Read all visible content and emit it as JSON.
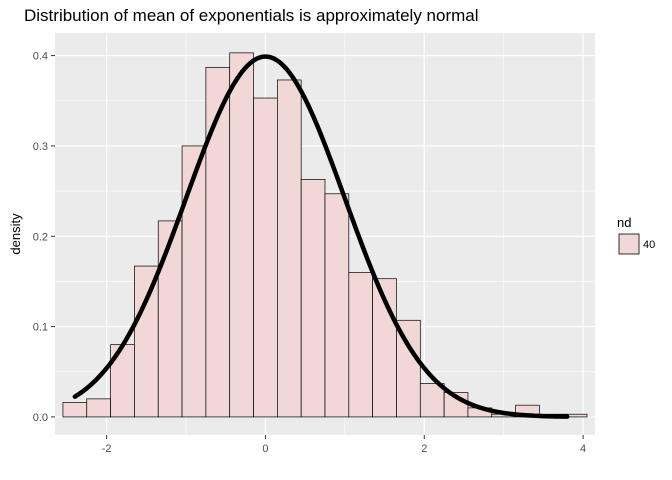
{
  "chart_data": {
    "type": "histogram",
    "title": "Distribution of mean of exponentials is approximately normal",
    "xlabel": "",
    "ylabel": "density",
    "xlim": [
      -2.65,
      4.15
    ],
    "ylim": [
      -0.02,
      0.425
    ],
    "x_ticks": [
      -2,
      0,
      2,
      4
    ],
    "x_tick_labels": [
      "-2",
      "0",
      "2",
      "4"
    ],
    "y_ticks": [
      0.0,
      0.1,
      0.2,
      0.3,
      0.4
    ],
    "y_tick_labels": [
      "0.0",
      "0.1",
      "0.2",
      "0.3",
      "0.4"
    ],
    "grid": true,
    "bin_width": 0.3,
    "bins": [
      {
        "x0": -2.55,
        "x1": -2.25,
        "density": 0.016
      },
      {
        "x0": -2.25,
        "x1": -1.95,
        "density": 0.02
      },
      {
        "x0": -1.95,
        "x1": -1.65,
        "density": 0.08
      },
      {
        "x0": -1.65,
        "x1": -1.35,
        "density": 0.167
      },
      {
        "x0": -1.35,
        "x1": -1.05,
        "density": 0.217
      },
      {
        "x0": -1.05,
        "x1": -0.75,
        "density": 0.3
      },
      {
        "x0": -0.75,
        "x1": -0.45,
        "density": 0.387
      },
      {
        "x0": -0.45,
        "x1": -0.15,
        "density": 0.403
      },
      {
        "x0": -0.15,
        "x1": 0.15,
        "density": 0.353
      },
      {
        "x0": 0.15,
        "x1": 0.45,
        "density": 0.373
      },
      {
        "x0": 0.45,
        "x1": 0.75,
        "density": 0.263
      },
      {
        "x0": 0.75,
        "x1": 1.05,
        "density": 0.247
      },
      {
        "x0": 1.05,
        "x1": 1.35,
        "density": 0.16
      },
      {
        "x0": 1.35,
        "x1": 1.65,
        "density": 0.153
      },
      {
        "x0": 1.65,
        "x1": 1.95,
        "density": 0.107
      },
      {
        "x0": 1.95,
        "x1": 2.25,
        "density": 0.037
      },
      {
        "x0": 2.25,
        "x1": 2.55,
        "density": 0.027
      },
      {
        "x0": 2.55,
        "x1": 2.85,
        "density": 0.01
      },
      {
        "x0": 2.85,
        "x1": 3.15,
        "density": 0.003
      },
      {
        "x0": 3.15,
        "x1": 3.45,
        "density": 0.013
      },
      {
        "x0": 3.45,
        "x1": 3.75,
        "density": 0.003
      },
      {
        "x0": 3.75,
        "x1": 4.05,
        "density": 0.003
      }
    ],
    "curve": {
      "mean": 0.0,
      "sd": 1.0,
      "x_range": [
        -2.4,
        3.8
      ]
    },
    "legend": {
      "title": "nd",
      "entries": [
        "40"
      ],
      "position": "right"
    },
    "colors": {
      "panel_bg": "#ebebeb",
      "grid": "#ffffff",
      "bar_fill": "#f2d7d7",
      "bar_stroke": "#000000",
      "curve": "#000000",
      "tick_text": "#4d4d4d"
    }
  }
}
